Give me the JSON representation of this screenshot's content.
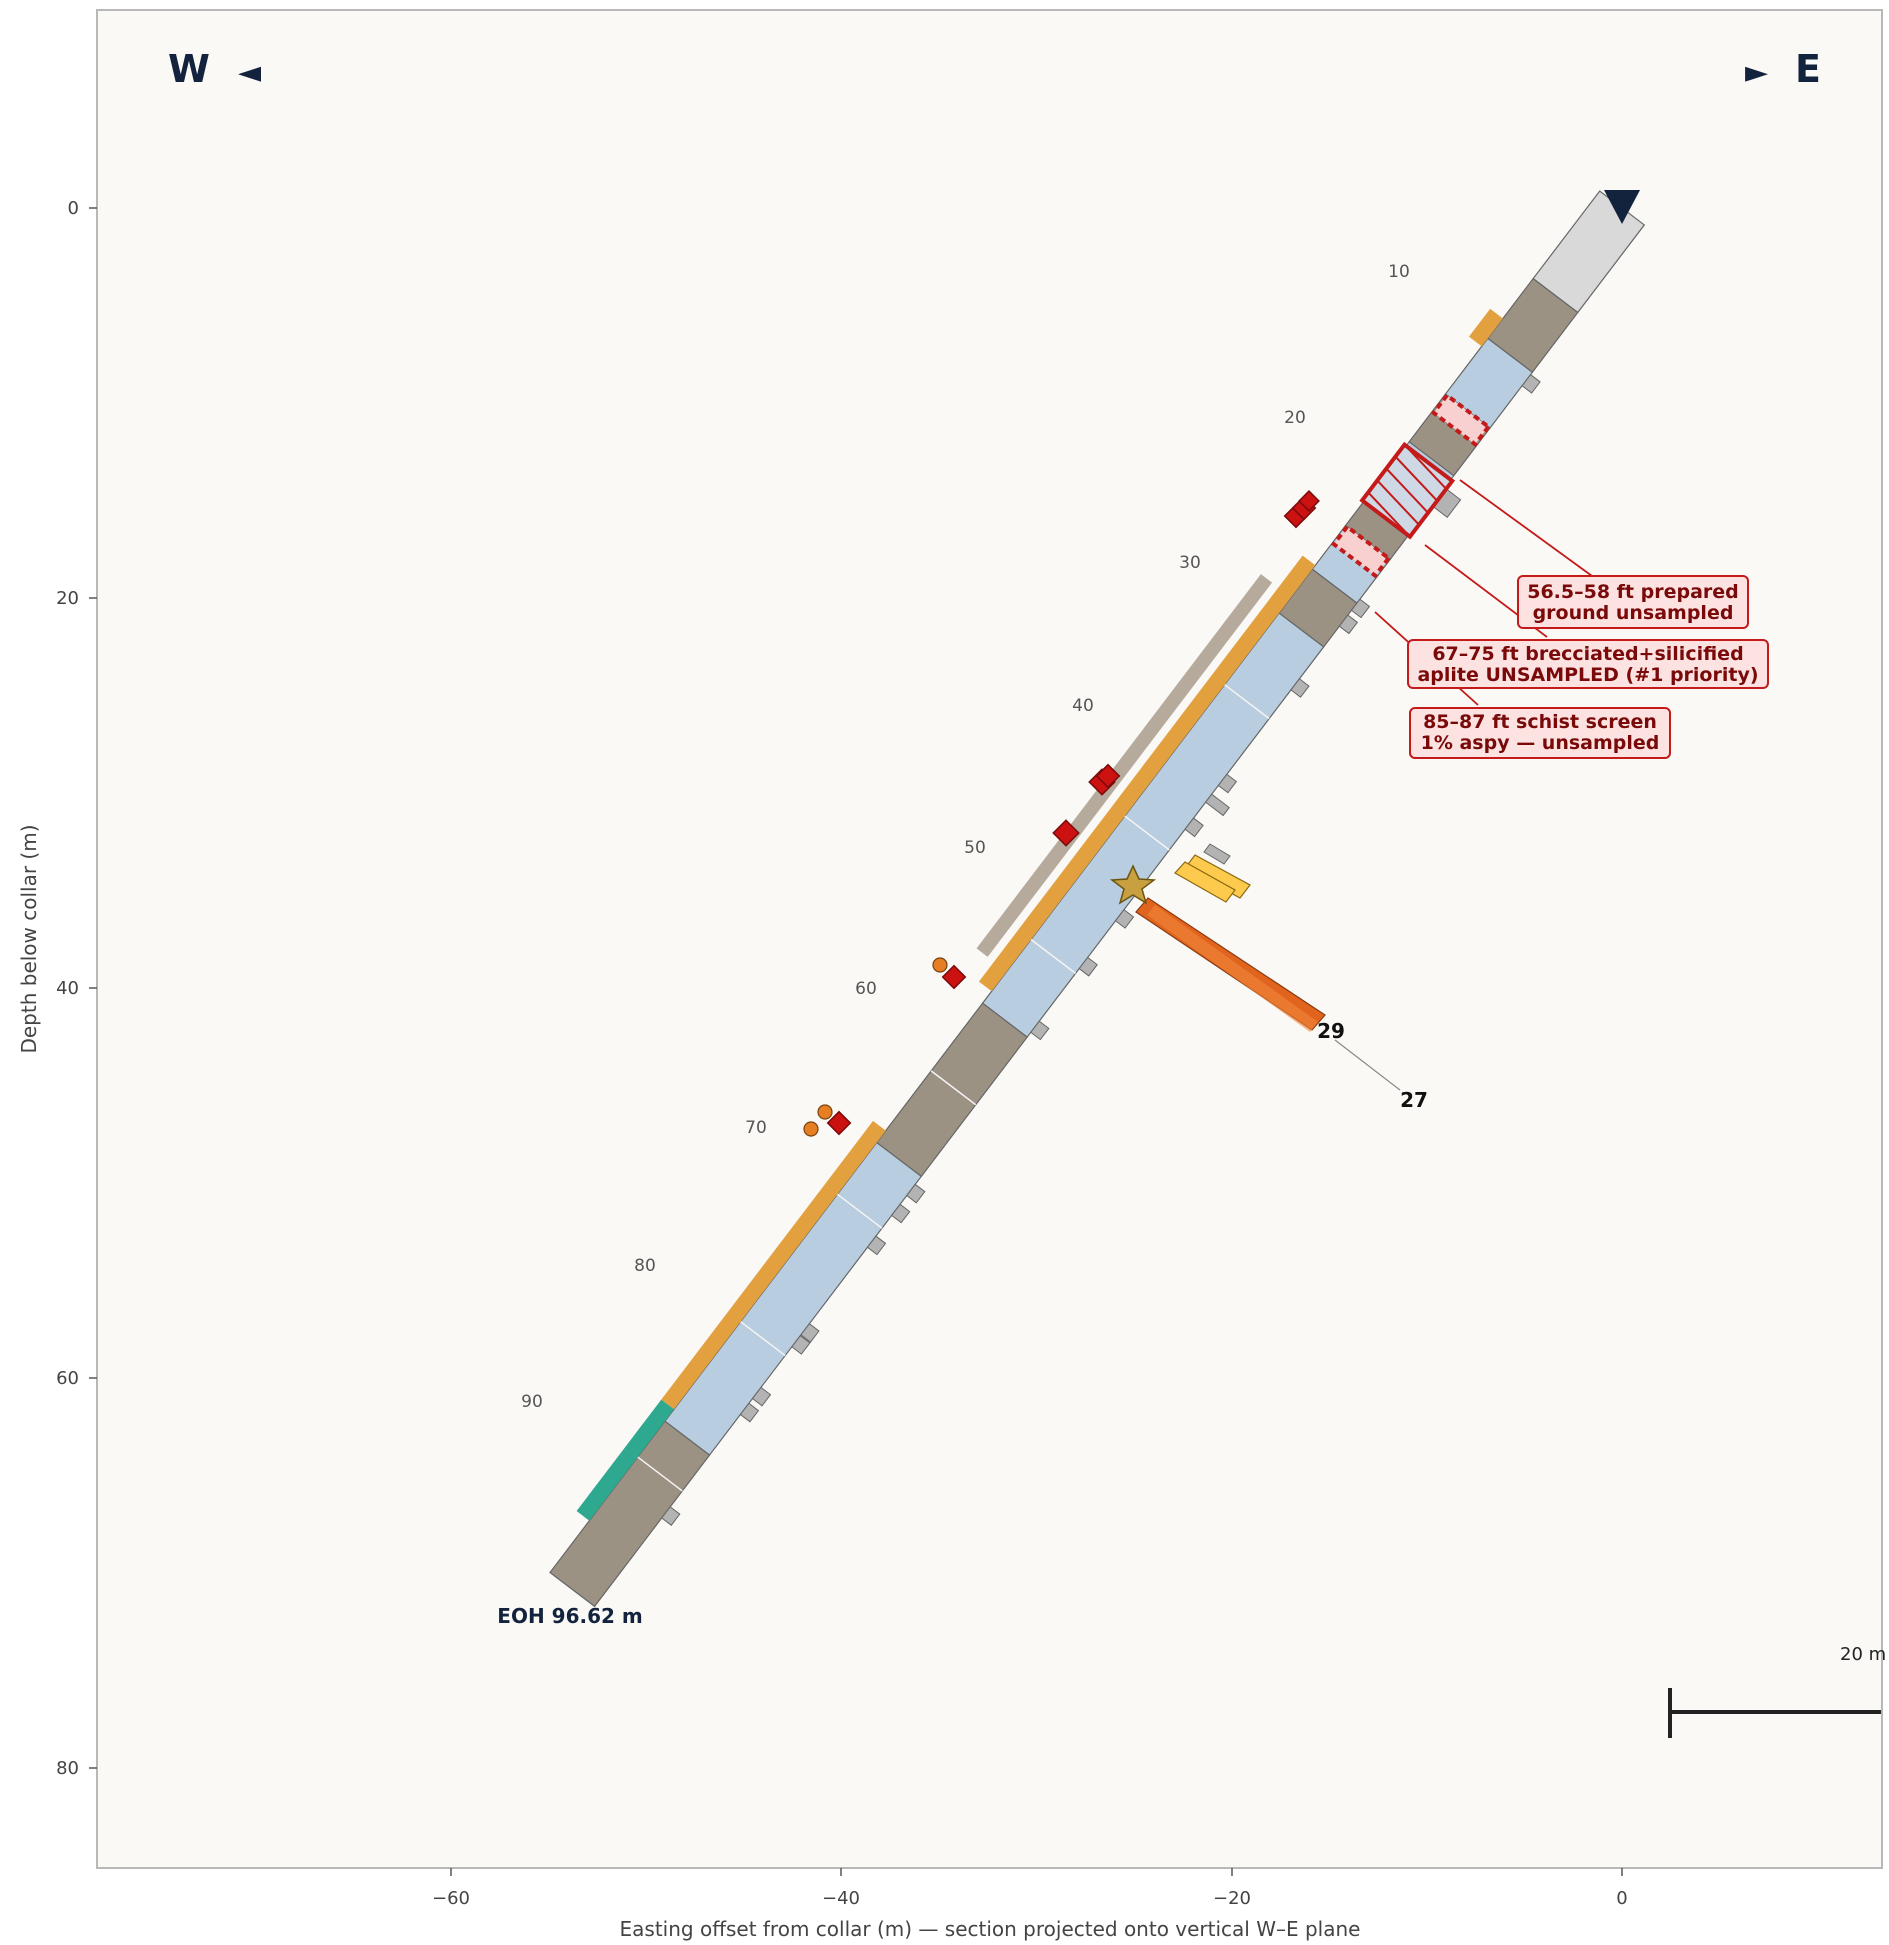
{
  "compass": {
    "west": "W",
    "east": "E",
    "west_arrow": "◄",
    "east_arrow": "►"
  },
  "axes": {
    "xlabel": "Easting offset from collar  (m)  —  section projected onto vertical W–E plane",
    "ylabel": "Depth below collar  (m)",
    "x_ticks": [
      "−60",
      "−40",
      "−20",
      "0"
    ],
    "y_ticks": [
      "0",
      "20",
      "40",
      "60",
      "80"
    ]
  },
  "depth_labels": [
    "10",
    "20",
    "30",
    "40",
    "50",
    "60",
    "70",
    "80",
    "90"
  ],
  "callouts": [
    {
      "line1": "56.5–58 ft prepared",
      "line2": "ground unsampled"
    },
    {
      "line1": "67–75 ft brecciated+silicified",
      "line2": "aplite UNSAMPLED (#1 priority)"
    },
    {
      "line1": "85–87 ft schist screen",
      "line2": "1% aspy — unsampled"
    }
  ],
  "vein_labels": {
    "a": "29",
    "b": "27"
  },
  "eoh_label": "EOH 96.62 m",
  "scale_label": "20 m",
  "colors": {
    "frame_bg": "#faf9f6",
    "overburden": "#d9d9d9",
    "schist": "#9c9283",
    "aplite": "#b8cde0",
    "alteration": "#e3a03f",
    "silica_band": "#b5aa9c",
    "teal": "#2fa890",
    "sulfide": "#cc1111",
    "arsenopyrite": "#e67e22",
    "vein_orange": "#e0641e",
    "vein_yellow": "#fdca4d",
    "unsampled_red": "#c41a1a",
    "navy": "#13223d"
  }
}
